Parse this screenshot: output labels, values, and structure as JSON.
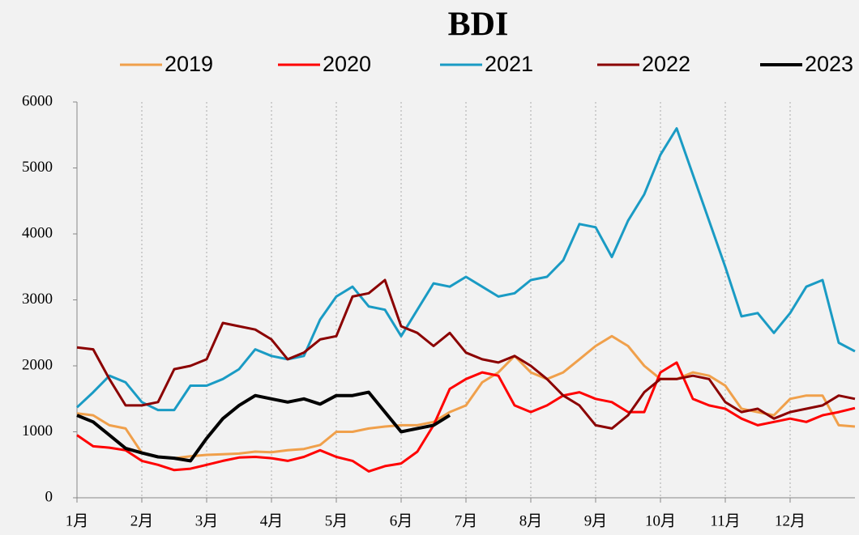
{
  "chart_data": {
    "type": "line",
    "title": "BDI",
    "x": [
      0,
      0.25,
      0.5,
      0.75,
      1,
      1.25,
      1.5,
      1.75,
      2,
      2.25,
      2.5,
      2.75,
      3,
      3.25,
      3.5,
      3.75,
      4,
      4.25,
      4.5,
      4.75,
      5,
      5.25,
      5.5,
      5.75,
      6,
      6.25,
      6.5,
      6.75,
      7,
      7.25,
      7.5,
      7.75,
      8,
      8.25,
      8.5,
      8.75,
      9,
      9.25,
      9.5,
      9.75,
      10,
      10.25,
      10.5,
      10.75,
      11,
      11.25,
      11.5,
      11.75,
      12
    ],
    "xlim": [
      0,
      12
    ],
    "xticks": [
      {
        "value": 0,
        "label": "1月"
      },
      {
        "value": 1,
        "label": "2月"
      },
      {
        "value": 2,
        "label": "3月"
      },
      {
        "value": 3,
        "label": "4月"
      },
      {
        "value": 4,
        "label": "5月"
      },
      {
        "value": 5,
        "label": "6月"
      },
      {
        "value": 6,
        "label": "7月"
      },
      {
        "value": 7,
        "label": "8月"
      },
      {
        "value": 8,
        "label": "9月"
      },
      {
        "value": 9,
        "label": "10月"
      },
      {
        "value": 10,
        "label": "11月"
      },
      {
        "value": 11,
        "label": "12月"
      }
    ],
    "ylim": [
      0,
      6000
    ],
    "yticks": [
      0,
      1000,
      2000,
      3000,
      4000,
      5000,
      6000
    ],
    "grid": "x",
    "legend": "top",
    "series": [
      {
        "name": "2019",
        "color": "#f0a04b",
        "values": [
          1280,
          1250,
          1100,
          1050,
          680,
          620,
          600,
          630,
          650,
          660,
          670,
          700,
          690,
          720,
          740,
          800,
          1000,
          1000,
          1050,
          1080,
          1100,
          1100,
          1150,
          1300,
          1400,
          1750,
          1900,
          2150,
          1900,
          1800,
          1900,
          2100,
          2300,
          2450,
          2300,
          2000,
          1800,
          1800,
          1900,
          1850,
          1700,
          1350,
          1300,
          1250,
          1500,
          1550,
          1550,
          1100,
          1080
        ]
      },
      {
        "name": "2020",
        "color": "#ff0000",
        "values": [
          950,
          780,
          760,
          720,
          560,
          500,
          420,
          440,
          500,
          560,
          610,
          620,
          600,
          560,
          620,
          720,
          620,
          560,
          400,
          480,
          520,
          700,
          1100,
          1650,
          1800,
          1900,
          1850,
          1400,
          1300,
          1400,
          1550,
          1600,
          1500,
          1450,
          1300,
          1300,
          1900,
          2050,
          1500,
          1400,
          1350,
          1200,
          1100,
          1150,
          1200,
          1150,
          1250,
          1300,
          1360
        ]
      },
      {
        "name": "2021",
        "color": "#1a9bc4",
        "values": [
          1370,
          1600,
          1850,
          1750,
          1450,
          1330,
          1330,
          1700,
          1700,
          1800,
          1950,
          2250,
          2150,
          2100,
          2150,
          2700,
          3050,
          3200,
          2900,
          2850,
          2450,
          2850,
          3250,
          3200,
          3350,
          3200,
          3050,
          3100,
          3300,
          3350,
          3600,
          4150,
          4100,
          3650,
          4200,
          4600,
          5200,
          5600,
          4900,
          4200,
          3500,
          2750,
          2800,
          2500,
          2800,
          3200,
          3300,
          2350,
          2220
        ]
      },
      {
        "name": "2022",
        "color": "#8b0000",
        "values": [
          2280,
          2250,
          1800,
          1400,
          1400,
          1450,
          1950,
          2000,
          2100,
          2650,
          2600,
          2550,
          2400,
          2100,
          2200,
          2400,
          2450,
          3050,
          3100,
          3300,
          2600,
          2500,
          2300,
          2500,
          2200,
          2100,
          2050,
          2150,
          2000,
          1800,
          1550,
          1400,
          1100,
          1050,
          1250,
          1600,
          1800,
          1800,
          1850,
          1800,
          1450,
          1300,
          1350,
          1200,
          1300,
          1350,
          1400,
          1550,
          1500
        ]
      },
      {
        "name": "2023",
        "color": "#000000",
        "values": [
          1250,
          1150,
          950,
          750,
          680,
          620,
          600,
          560,
          900,
          1200,
          1400,
          1550,
          1500,
          1450,
          1500,
          1420,
          1550,
          1550,
          1600,
          1300,
          1000,
          1050,
          1100,
          1250,
          null,
          null,
          null,
          null,
          null,
          null,
          null,
          null,
          null,
          null,
          null,
          null,
          null,
          null,
          null,
          null,
          null,
          null,
          null,
          null,
          null,
          null,
          null,
          null,
          null
        ]
      }
    ]
  }
}
